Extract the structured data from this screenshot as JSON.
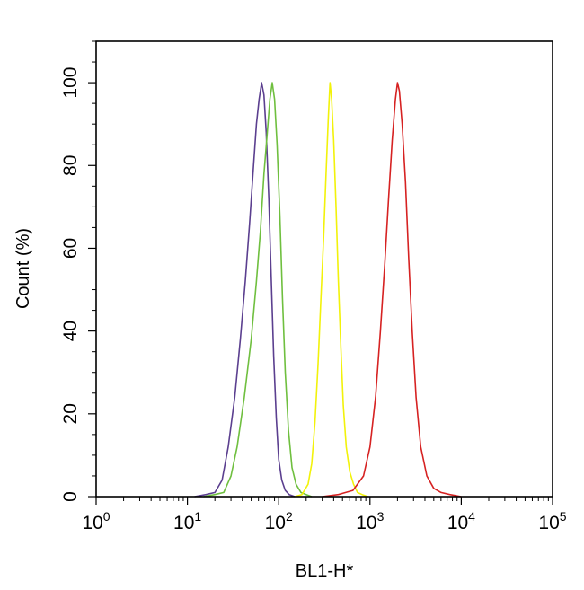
{
  "chart_data": {
    "type": "line",
    "title": "",
    "xlabel": "BL1-H*",
    "ylabel": "Count  (%)",
    "x_scale": "log",
    "xlim": [
      1,
      100000
    ],
    "ylim": [
      0,
      110
    ],
    "x_ticks": [
      {
        "base": "10",
        "exp": "0",
        "value": 1
      },
      {
        "base": "10",
        "exp": "1",
        "value": 10
      },
      {
        "base": "10",
        "exp": "2",
        "value": 100
      },
      {
        "base": "10",
        "exp": "3",
        "value": 1000
      },
      {
        "base": "10",
        "exp": "4",
        "value": 10000
      },
      {
        "base": "10",
        "exp": "5",
        "value": 100000
      }
    ],
    "y_ticks": [
      "0",
      "20",
      "40",
      "60",
      "80",
      "100"
    ],
    "grid": false,
    "legend": "none",
    "series": [
      {
        "color": "#5b3f8f",
        "x": [
          12,
          16,
          20,
          24,
          28,
          33,
          38,
          43,
          48,
          53,
          57,
          61,
          65,
          69,
          73,
          78,
          83,
          88,
          94,
          100,
          108,
          118,
          130,
          150
        ],
        "y": [
          0,
          0.5,
          1,
          4,
          12,
          24,
          38,
          52,
          66,
          80,
          90,
          96,
          100,
          97,
          88,
          72,
          52,
          34,
          19,
          9,
          4,
          1.5,
          0.5,
          0
        ]
      },
      {
        "color": "#6fbf3f",
        "x": [
          15,
          20,
          25,
          30,
          35,
          42,
          50,
          57,
          63,
          69,
          75,
          80,
          85,
          90,
          96,
          103,
          110,
          118,
          128,
          140,
          155,
          175,
          200,
          230
        ],
        "y": [
          0,
          0.5,
          1,
          5,
          12,
          24,
          38,
          52,
          64,
          78,
          88,
          96,
          100,
          96,
          85,
          68,
          48,
          30,
          16,
          7,
          3,
          1,
          0.5,
          0
        ]
      },
      {
        "color": "#f2f20a",
        "x": [
          150,
          180,
          210,
          230,
          250,
          270,
          290,
          310,
          330,
          350,
          365,
          380,
          400,
          425,
          450,
          480,
          510,
          550,
          600,
          660,
          730,
          820,
          950
        ],
        "y": [
          0,
          0.5,
          3,
          8,
          18,
          32,
          48,
          62,
          78,
          92,
          100,
          96,
          86,
          70,
          52,
          36,
          22,
          12,
          6,
          3,
          1,
          0.5,
          0
        ]
      },
      {
        "color": "#d62222",
        "x": [
          300,
          450,
          650,
          850,
          1000,
          1150,
          1300,
          1450,
          1600,
          1750,
          1900,
          2000,
          2100,
          2250,
          2450,
          2650,
          2900,
          3200,
          3600,
          4200,
          5000,
          6000,
          7500,
          10000
        ],
        "y": [
          0,
          0.5,
          1.5,
          5,
          12,
          24,
          40,
          56,
          72,
          86,
          96,
          100,
          98,
          90,
          76,
          58,
          40,
          24,
          12,
          5,
          2,
          1,
          0.5,
          0
        ]
      }
    ]
  }
}
